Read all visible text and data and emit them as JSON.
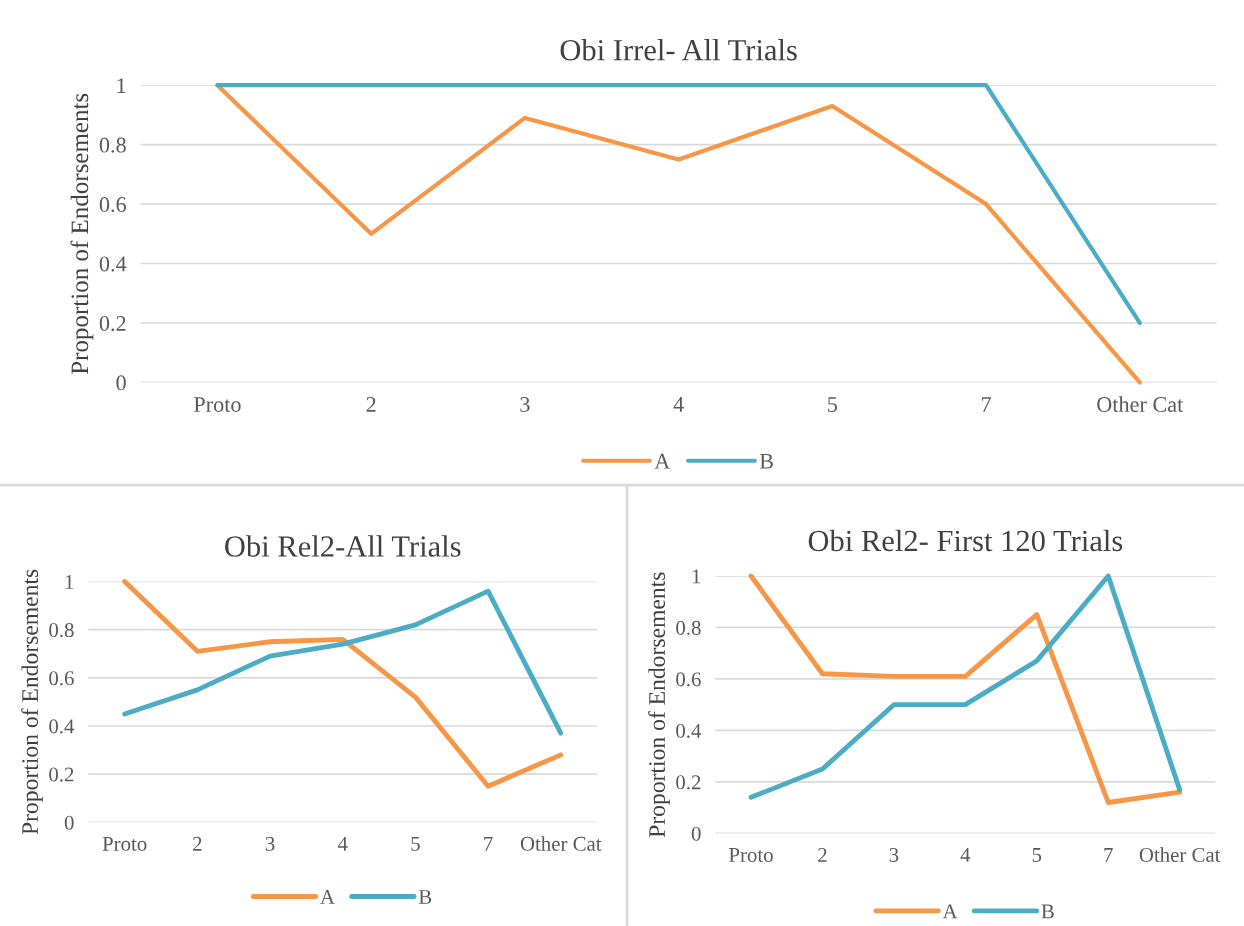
{
  "chart_data": [
    {
      "type": "line",
      "title": "Obi Irrel- All Trials",
      "ylabel": "Proportion of Endorsements",
      "categories": [
        "Proto",
        "2",
        "3",
        "4",
        "5",
        "7",
        "Other Cat"
      ],
      "series": [
        {
          "name": "A",
          "color": "#f79646",
          "values": [
            1,
            0.5,
            0.89,
            0.75,
            0.93,
            0.6,
            0
          ]
        },
        {
          "name": "B",
          "color": "#4bacc6",
          "values": [
            1,
            1,
            1,
            1,
            1,
            1,
            0.2
          ]
        }
      ],
      "ylim": [
        0,
        1
      ],
      "yticks": [
        0,
        0.2,
        0.4,
        0.6,
        0.8,
        1
      ],
      "grid": "y",
      "legend": "bottom",
      "marker": "none",
      "line_style": "solid"
    },
    {
      "type": "line",
      "title": "Obi Rel2-All Trials",
      "ylabel": "Proportion of Endorsements",
      "categories": [
        "Proto",
        "2",
        "3",
        "4",
        "5",
        "7",
        "Other Cat"
      ],
      "series": [
        {
          "name": "A",
          "color": "#f79646",
          "values": [
            1,
            0.71,
            0.75,
            0.76,
            0.52,
            0.15,
            0.28
          ]
        },
        {
          "name": "B",
          "color": "#4bacc6",
          "values": [
            0.45,
            0.55,
            0.69,
            0.74,
            0.82,
            0.96,
            0.37
          ]
        }
      ],
      "ylim": [
        0,
        1
      ],
      "yticks": [
        0,
        0.2,
        0.4,
        0.6,
        0.8,
        1
      ],
      "grid": "y",
      "legend": "bottom",
      "marker": "none",
      "line_style": "solid"
    },
    {
      "type": "line",
      "title": "Obi Rel2- First 120 Trials",
      "ylabel": "Proportion of Endorsements",
      "categories": [
        "Proto",
        "2",
        "3",
        "4",
        "5",
        "7",
        "Other Cat"
      ],
      "series": [
        {
          "name": "A",
          "color": "#f79646",
          "values": [
            1,
            0.62,
            0.61,
            0.61,
            0.85,
            0.12,
            0.16
          ]
        },
        {
          "name": "B",
          "color": "#4bacc6",
          "values": [
            0.14,
            0.25,
            0.5,
            0.5,
            0.67,
            1,
            0.17
          ]
        }
      ],
      "ylim": [
        0,
        1
      ],
      "yticks": [
        0,
        0.2,
        0.4,
        0.6,
        0.8,
        1
      ],
      "grid": "y",
      "legend": "bottom",
      "marker": "none",
      "line_style": "solid"
    }
  ]
}
